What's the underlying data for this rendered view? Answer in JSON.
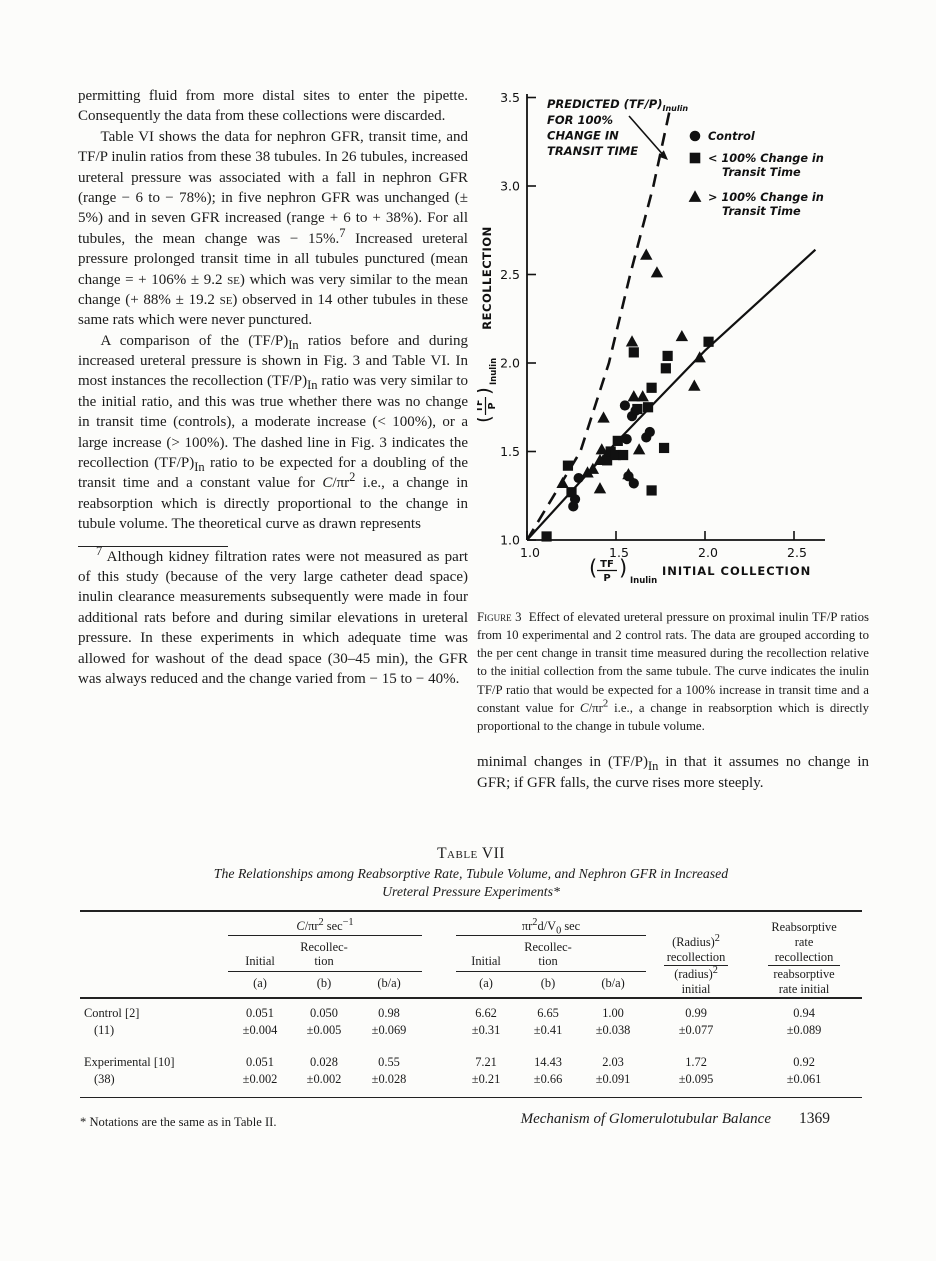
{
  "left_column": {
    "p1_html": "permitting fluid from more distal sites to enter the pipette. Consequently the data from these collections were discarded.",
    "p2_html": "Table VI shows the data for nephron GFR, transit time, and TF/P inulin ratios from these 38 tubules. In 26 tubules, increased ureteral pressure was associated with a fall in nephron GFR (range − 6 to − 78%); in five nephron GFR was unchanged (± 5%) and in seven GFR increased (range + 6 to + 38%). For all tubules, the mean change was − 15%.<sup>7</sup> Increased ureteral pressure prolonged transit time in all tubules punctured (mean change = + 106% ± 9.2 <span class='sc'>se</span>) which was very similar to the mean change (+ 88% ± 19.2 <span class='sc'>se</span>) observed in 14 other tubules in these same rats which were never punctured.",
    "p3_html": "A comparison of the (TF/P)<sub>In</sub> ratios before and during increased ureteral pressure is shown in Fig. 3 and Table VI. In most instances the recollection (TF/P)<sub>In</sub> ratio was very similar to the initial ratio, and this was true whether there was no change in transit time (controls), a moderate increase (&lt; 100%), or a large increase (&gt; 100%). The dashed line in Fig. 3 indicates the recollection (TF/P)<sub>In</sub> ratio to be expected for a doubling of the transit time and a constant value for <i>C</i>/πr<sup>2</sup> i.e., a change in reabsorption which is directly proportional to the change in tubule volume. The theoretical curve as drawn represents",
    "footnote_html": "<sup>7</sup> Although kidney filtration rates were not measured as part of this study (because of the very large catheter dead space) inulin clearance measurements subsequently were made in four additional rats before and during similar elevations in ureteral pressure. In these experiments in which adequate time was allowed for washout of the dead space (30–45 min), the GFR was always reduced and the change varied from − 15 to − 40%."
  },
  "figure": {
    "caption_html": "<span class='caption-label'>Figure 3</span>&nbsp;&nbsp;Effect of elevated ureteral pressure on proximal inulin TF/P ratios from 10 experimental and 2 control rats. The data are grouped according to the per cent change in transit time measured during the recollection relative to the initial collection from the same tubule. The curve indicates the inulin TF/P ratio that would be expected for a 100% increase in transit time and a constant value for <i>C</i>/πr<sup>2</sup> i.e., a change in reabsorption which is directly proportional to the change in tubule volume.",
    "after_caption_html": "minimal changes in (TF/P)<sub>In</sub> in that it assumes no change in GFR; if GFR falls, the curve rises more steeply.",
    "chart_data": {
      "type": "scatter",
      "xlim": [
        1.0,
        2.65
      ],
      "ylim": [
        1.0,
        3.5
      ],
      "xticks": [
        "1.0",
        "1.5",
        "2.0",
        "2.5"
      ],
      "yticks": [
        "1.0",
        "1.5",
        "2.0",
        "2.5",
        "3.0",
        "3.5"
      ],
      "ylabel_text": "RECOLLECTION",
      "xlabel_text": "INITIAL COLLECTION",
      "fraction": {
        "num": "TF",
        "den": "P",
        "sub": "Inulin"
      },
      "annotation": {
        "line1": "PREDICTED (TF/P)",
        "line1_sub": "Inulin",
        "lines": [
          "FOR 100%",
          "CHANGE IN",
          "TRANSIT TIME"
        ]
      },
      "legend": [
        {
          "marker": "circle",
          "lines": [
            "Control"
          ]
        },
        {
          "marker": "square",
          "lines": [
            "< 100% Change in",
            "Transit Time"
          ]
        },
        {
          "marker": "triangle",
          "lines": [
            "> 100% Change in",
            "Transit Time"
          ]
        }
      ],
      "dashed_line": {
        "name": "predicted-100pct-transit-time",
        "points": [
          [
            1.0,
            1.0
          ],
          [
            1.3,
            1.5
          ],
          [
            1.46,
            2.0
          ],
          [
            1.58,
            2.5
          ],
          [
            1.71,
            3.0
          ],
          [
            1.8,
            3.42
          ]
        ]
      },
      "solid_line": {
        "name": "theoretical-curve",
        "points": [
          [
            1.0,
            1.0
          ],
          [
            1.5,
            1.55
          ],
          [
            2.0,
            2.07
          ],
          [
            2.62,
            2.64
          ]
        ]
      },
      "series": [
        {
          "name": "Control",
          "marker": "circle",
          "points": [
            [
              1.26,
              1.19
            ],
            [
              1.27,
              1.23
            ],
            [
              1.29,
              1.35
            ],
            [
              1.55,
              1.76
            ],
            [
              1.59,
              1.7
            ],
            [
              1.61,
              1.73
            ],
            [
              1.67,
              1.58
            ],
            [
              1.69,
              1.61
            ],
            [
              1.56,
              1.57
            ],
            [
              1.57,
              1.36
            ],
            [
              1.6,
              1.32
            ]
          ]
        },
        {
          "name": "<100% Change in Transit Time",
          "marker": "square",
          "points": [
            [
              1.11,
              1.02
            ],
            [
              1.25,
              1.27
            ],
            [
              1.23,
              1.42
            ],
            [
              1.45,
              1.45
            ],
            [
              1.47,
              1.5
            ],
            [
              1.51,
              1.56
            ],
            [
              1.5,
              1.48
            ],
            [
              1.54,
              1.48
            ],
            [
              1.6,
              2.06
            ],
            [
              1.79,
              2.04
            ],
            [
              2.02,
              2.12
            ],
            [
              1.78,
              1.97
            ],
            [
              1.7,
              1.86
            ],
            [
              1.68,
              1.75
            ],
            [
              1.62,
              1.74
            ],
            [
              1.77,
              1.52
            ],
            [
              1.7,
              1.28
            ]
          ]
        },
        {
          "name": ">100% Change in Transit Time",
          "marker": "triangle",
          "points": [
            [
              1.2,
              1.32
            ],
            [
              1.34,
              1.38
            ],
            [
              1.37,
              1.4
            ],
            [
              1.41,
              1.45
            ],
            [
              1.41,
              1.29
            ],
            [
              1.42,
              1.51
            ],
            [
              1.43,
              1.69
            ],
            [
              1.6,
              1.81
            ],
            [
              1.65,
              1.81
            ],
            [
              1.57,
              1.37
            ],
            [
              1.94,
              1.87
            ],
            [
              1.97,
              2.03
            ],
            [
              1.87,
              2.15
            ],
            [
              1.59,
              2.12
            ],
            [
              1.67,
              2.61
            ],
            [
              1.73,
              2.51
            ],
            [
              1.63,
              1.51
            ]
          ]
        }
      ]
    }
  },
  "table": {
    "title": "Table VII",
    "subtitle_html": "The Relationships among Reabsorptive Rate, Tubule Volume, and Nephron GFR in Increased<br>Ureteral Pressure Experiments*",
    "group1_html": "<i>C</i>/πr<sup>2</sup> sec<sup>−1</sup>",
    "group2_html": "πr<sup>2</sup>d/V<sub>0</sub> sec",
    "col_initial": "Initial",
    "col_recollection_html": "Recollec-<br>tion",
    "col_a": "(a)",
    "col_b": "(b)",
    "col_ba": "(b/a)",
    "radius_num_html": "(Radius)<sup>2</sup><br>recollection",
    "radius_den_html": "(radius)<sup>2</sup><br>initial",
    "reab_num_html": "Reabsorptive<br>rate<br>recollection",
    "reab_den_html": "reabsorptive<br>rate initial",
    "rows": [
      {
        "label": "Control [2]",
        "n": "(11)",
        "values": [
          [
            "0.051",
            "±0.004"
          ],
          [
            "0.050",
            "±0.005"
          ],
          [
            "0.98",
            "±0.069"
          ],
          [
            "6.62",
            "±0.31"
          ],
          [
            "6.65",
            "±0.41"
          ],
          [
            "1.00",
            "±0.038"
          ],
          [
            "0.99",
            "±0.077"
          ],
          [
            "0.94",
            "±0.089"
          ]
        ]
      },
      {
        "label": "Experimental [10]",
        "n": "(38)",
        "values": [
          [
            "0.051",
            "±0.002"
          ],
          [
            "0.028",
            "±0.002"
          ],
          [
            "0.55",
            "±0.028"
          ],
          [
            "7.21",
            "±0.21"
          ],
          [
            "14.43",
            "±0.66"
          ],
          [
            "2.03",
            "±0.091"
          ],
          [
            "1.72",
            "±0.095"
          ],
          [
            "0.92",
            "±0.061"
          ]
        ]
      }
    ],
    "footnote": "* Notations are the same as in Table II."
  },
  "footer": {
    "journal_title": "Mechanism of Glomerulotubular Balance",
    "page_number": "1369"
  }
}
